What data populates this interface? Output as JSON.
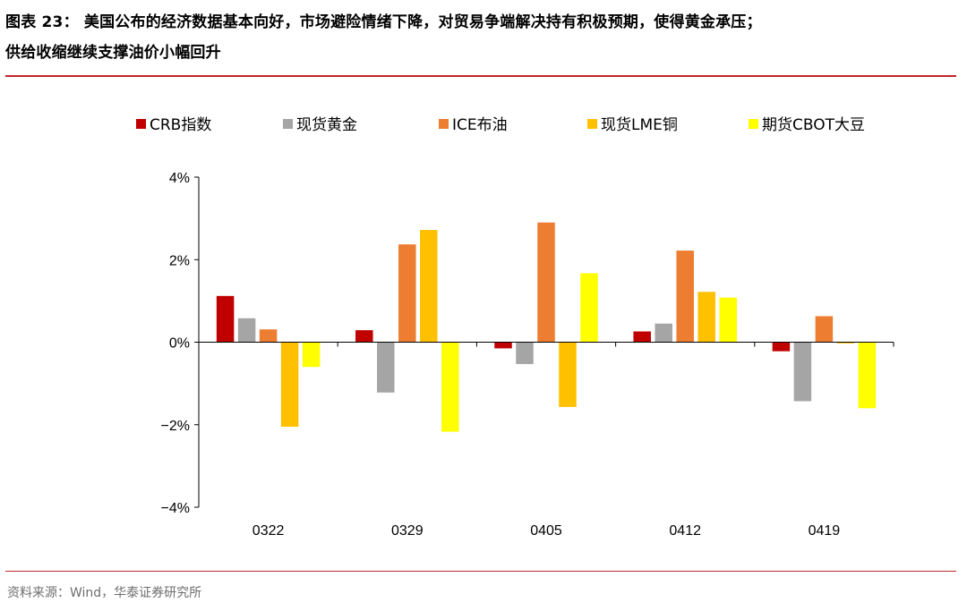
{
  "title": {
    "line1": "图表 23：  美国公布的经济数据基本向好，市场避险情绪下降，对贸易争端解决持有积极预期，使得黄金承压；",
    "line2": "供给收缩继续支撑油价小幅回升"
  },
  "source": "资料来源：Wind，华泰证券研究所",
  "chart_data": {
    "type": "bar",
    "categories": [
      "0322",
      "0329",
      "0405",
      "0412",
      "0419"
    ],
    "ylim": [
      -4,
      4
    ],
    "yticks": [
      4,
      2,
      0,
      -2,
      -4
    ],
    "ytick_labels": [
      "4%",
      "2%",
      "0%",
      "−2%",
      "−4%"
    ],
    "legend_position": "top",
    "grid": false,
    "series": [
      {
        "name": "CRB指数",
        "color": "#c00000",
        "values": [
          1.12,
          0.29,
          -0.15,
          0.26,
          -0.22
        ]
      },
      {
        "name": "现货黄金",
        "color": "#a5a5a5",
        "values": [
          0.58,
          -1.22,
          -0.53,
          0.45,
          -1.43
        ]
      },
      {
        "name": "ICE布油",
        "color": "#ed7d31",
        "values": [
          0.31,
          2.37,
          2.9,
          2.22,
          0.63
        ]
      },
      {
        "name": "现货LME铜",
        "color": "#ffc000",
        "values": [
          -2.05,
          2.72,
          -1.57,
          1.22,
          -0.03
        ]
      },
      {
        "name": "期货CBOT大豆",
        "color": "#ffff00",
        "values": [
          -0.6,
          -2.17,
          1.67,
          1.08,
          -1.6
        ]
      }
    ]
  }
}
